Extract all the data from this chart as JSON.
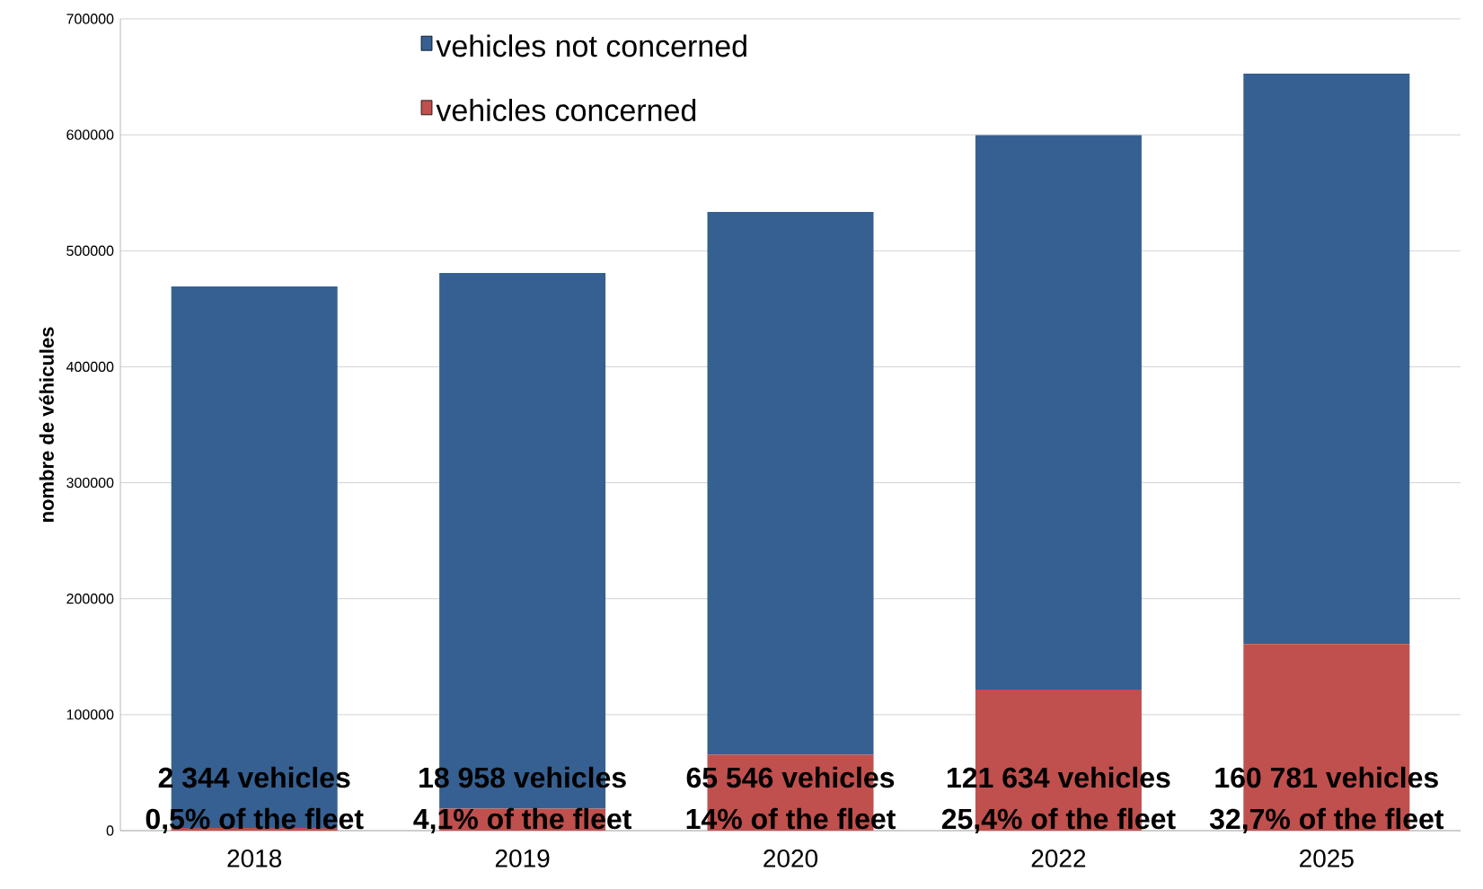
{
  "chart_data": {
    "type": "bar",
    "stacked": true,
    "ylabel": "nombre de véhicules",
    "categories": [
      "2018",
      "2019",
      "2020",
      "2022",
      "2025"
    ],
    "series": [
      {
        "name": "vehicles concerned",
        "color": "#c0504d",
        "values": [
          2344,
          18958,
          65546,
          121634,
          160781
        ],
        "value_labels": [
          "2 344 vehicles",
          "18 958 vehicles",
          "65 546 vehicles",
          "121 634 vehicles",
          "160 781 vehicles"
        ]
      },
      {
        "name": "vehicles not concerned",
        "color": "#366092",
        "values": [
          467000,
          462000,
          468000,
          478000,
          492000
        ]
      }
    ],
    "annotations": [
      {
        "text": "0,5% of the fleet",
        "x": "2018",
        "y": 0
      },
      {
        "text": "4,1% of the fleet",
        "x": "2019",
        "y": 0
      },
      {
        "text": "14% of the fleet",
        "x": "2020",
        "y": 0
      },
      {
        "text": "25,4% of the fleet",
        "x": "2022",
        "y": 0
      },
      {
        "text": "32,7% of the fleet",
        "x": "2025",
        "y": 0
      }
    ],
    "ylim": [
      0,
      700000
    ],
    "yticks": [
      0,
      100000,
      200000,
      300000,
      400000,
      500000,
      600000,
      700000
    ],
    "grid": "y",
    "legend": "top"
  }
}
